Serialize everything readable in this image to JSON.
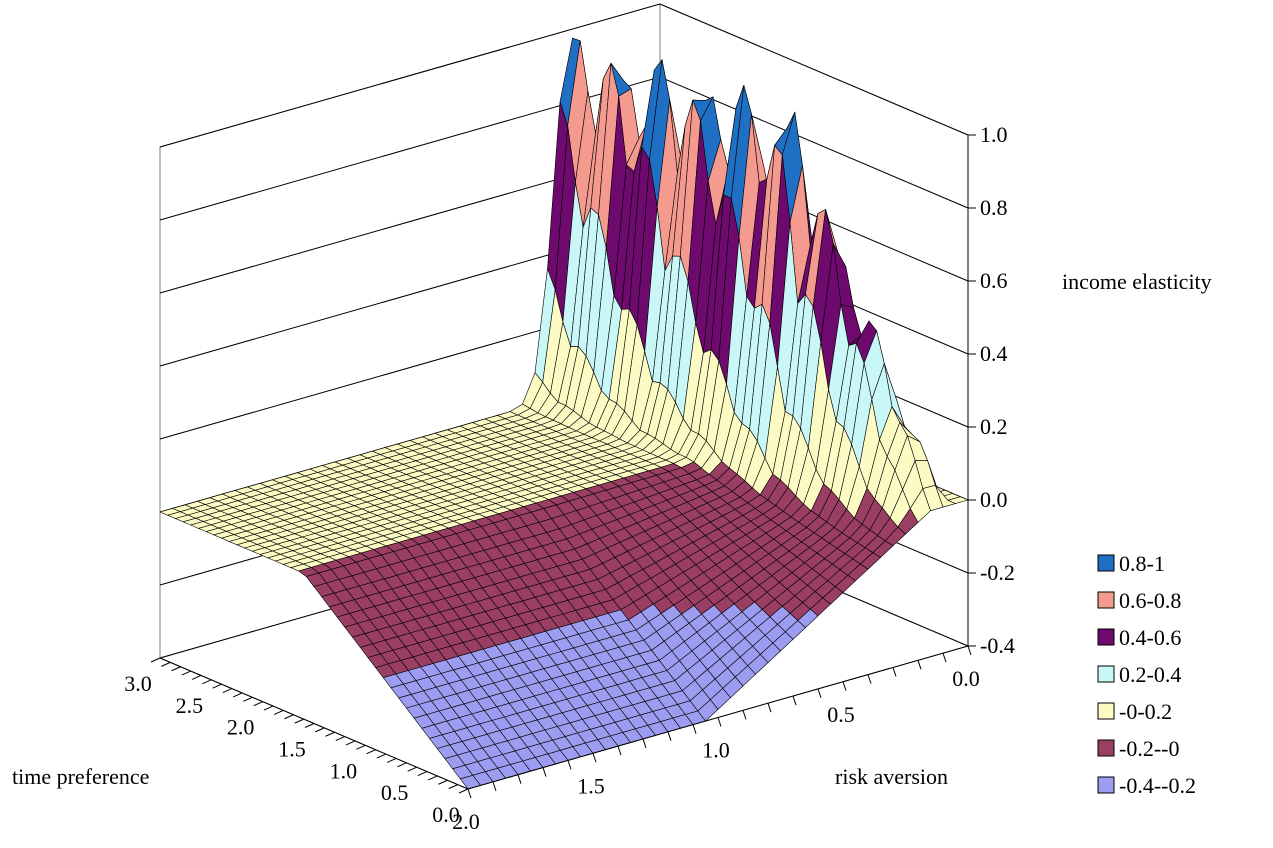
{
  "chart_data": {
    "type": "surface",
    "title": "",
    "xlabel": "risk aversion",
    "ylabel": "time preference",
    "zlabel": "income elasticity",
    "x_ticks": [
      "0.0",
      "0.5",
      "1.0",
      "1.5",
      "2.0"
    ],
    "y_ticks": [
      "0.0",
      "0.5",
      "1.0",
      "1.5",
      "2.0",
      "2.5",
      "3.0"
    ],
    "z_ticks": [
      "-0.4",
      "-0.2",
      "0.0",
      "0.2",
      "0.4",
      "0.6",
      "0.8",
      "1.0"
    ],
    "xlim": [
      0,
      2
    ],
    "ylim": [
      0,
      3
    ],
    "zlim": [
      -0.4,
      1
    ],
    "legend_position": "bottom-right",
    "legend": [
      {
        "label": "0.8-1",
        "color": "#1f6fc4"
      },
      {
        "label": "0.6-0.8",
        "color": "#f59a8e"
      },
      {
        "label": "0.4-0.6",
        "color": "#6e0a6e"
      },
      {
        "label": "0.2-0.4",
        "color": "#c9f7f7"
      },
      {
        "label": "-0-0.2",
        "color": "#fdfbc4"
      },
      {
        "label": "-0.2--0",
        "color": "#9a3f63"
      },
      {
        "label": "-0.4--0.2",
        "color": "#9c9cf0"
      }
    ],
    "surface_description_values": {
      "flat_region_z": 0.0,
      "min_z": -0.4,
      "max_z": 1.0
    }
  }
}
